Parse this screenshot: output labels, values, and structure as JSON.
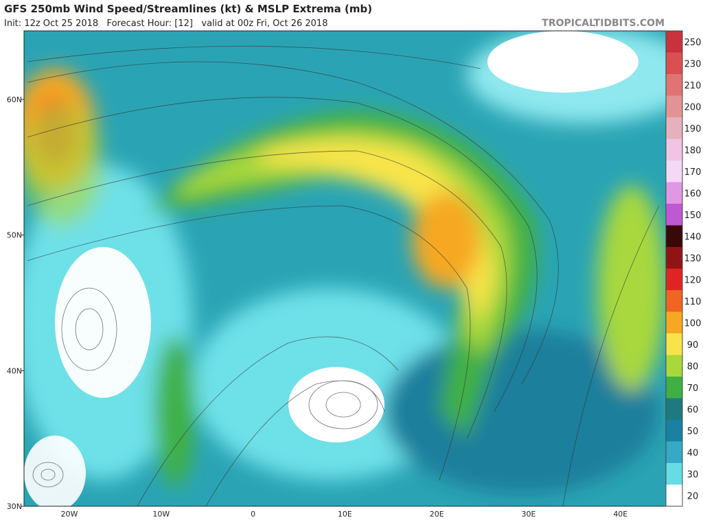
{
  "header": {
    "title": "GFS 250mb Wind Speed/Streamlines (kt) & MSLP Extrema (mb)",
    "subtitle": "Init: 12z Oct 25 2018   Forecast Hour: [12]   valid at 00z Fri, Oct 26 2018",
    "credit": "TROPICALTIDBITS.COM"
  },
  "map": {
    "lat_labels": [
      "60N",
      "50N",
      "40N",
      "30N"
    ],
    "lon_labels": [
      "20W",
      "10W",
      "0",
      "10E",
      "20E",
      "30E",
      "40E"
    ]
  },
  "colorbar": {
    "labels": [
      "250",
      "230",
      "210",
      "200",
      "190",
      "180",
      "170",
      "160",
      "150",
      "140",
      "130",
      "120",
      "110",
      "100",
      "90",
      "80",
      "70",
      "60",
      "50",
      "40",
      "30",
      "20"
    ],
    "colors": [
      "#c8323c",
      "#d85050",
      "#e07474",
      "#e29494",
      "#e6b0bc",
      "#f0c4e2",
      "#f4d8f4",
      "#e098e4",
      "#c058d4",
      "#3a0808",
      "#901414",
      "#e02424",
      "#f06424",
      "#f6a824",
      "#f8e44a",
      "#a8d83c",
      "#40b044",
      "#1e7a80",
      "#1a80a4",
      "#34aac4",
      "#66dce6",
      "#ffffff"
    ]
  }
}
